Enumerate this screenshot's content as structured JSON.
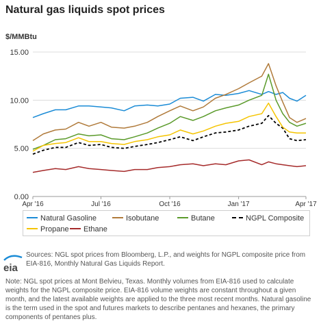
{
  "title": "Natural gas liquids spot prices",
  "unit_label": "$/MMBtu",
  "legend": {
    "items": [
      {
        "label": "Natural Gasoline",
        "color": "#1a8bd6",
        "dashed": false
      },
      {
        "label": "Isobutane",
        "color": "#b07a3a",
        "dashed": false
      },
      {
        "label": "Butane",
        "color": "#5a9a2a",
        "dashed": false
      },
      {
        "label": "NGPL Composite",
        "color": "#000000",
        "dashed": true
      },
      {
        "label": "Propane",
        "color": "#f5c400",
        "dashed": false
      },
      {
        "label": "Ethane",
        "color": "#a52a2a",
        "dashed": false
      }
    ]
  },
  "footer": {
    "logo_text": "eia",
    "sources": "Sources: NGL spot prices from Bloomberg, L.P., and weights for NGPL composite price from EIA-816, Monthly Natural Gas Liquids Report.",
    "note": "Note: NGL spot prices at Mont Belvieu, Texas. Monthly volumes from EIA-816 used to calculate weights for the NGPL composite price. EIA-816 volume weights are constant throughout a given month, and the latest available weights are applied to the three most recent months. Natural gasoline is the term used in the spot and futures markets to describe pentanes and hexanes, the primary components of pentanes plus."
  },
  "chart_data": {
    "type": "line",
    "title": "Natural gas liquids spot prices",
    "ylabel": "$/MMBtu",
    "xlabel": "",
    "ylim": [
      0,
      15
    ],
    "y_ticks": [
      0,
      5,
      10,
      15
    ],
    "y_tick_labels": [
      "0.00",
      "5.00",
      "10.00",
      "15.00"
    ],
    "x_range": [
      "2016-04-01",
      "2017-04-01"
    ],
    "x_ticks": [
      "2016-04-01",
      "2016-07-01",
      "2016-10-01",
      "2017-01-01",
      "2017-04-01"
    ],
    "x_tick_labels": [
      "Apr '16",
      "Jul '16",
      "Oct '16",
      "Jan '17",
      "Apr '17"
    ],
    "grid": "horizontal",
    "legend_position": "bottom",
    "x": [
      "2016-04-01",
      "2016-04-15",
      "2016-05-01",
      "2016-05-15",
      "2016-06-01",
      "2016-06-15",
      "2016-07-01",
      "2016-07-15",
      "2016-08-01",
      "2016-08-15",
      "2016-09-01",
      "2016-09-15",
      "2016-10-01",
      "2016-10-15",
      "2016-11-01",
      "2016-11-15",
      "2016-12-01",
      "2016-12-15",
      "2017-01-01",
      "2017-01-15",
      "2017-02-01",
      "2017-02-10",
      "2017-02-20",
      "2017-03-01",
      "2017-03-10",
      "2017-03-20",
      "2017-04-01"
    ],
    "series": [
      {
        "name": "Natural Gasoline",
        "color": "#1a8bd6",
        "values": [
          8.2,
          8.6,
          9.0,
          9.0,
          9.4,
          9.4,
          9.3,
          9.2,
          8.9,
          9.4,
          9.5,
          9.4,
          9.6,
          10.2,
          10.3,
          9.9,
          10.6,
          10.5,
          10.7,
          11.0,
          10.6,
          10.9,
          10.6,
          10.8,
          10.2,
          9.9,
          10.5
        ]
      },
      {
        "name": "Isobutane",
        "color": "#b07a3a",
        "values": [
          5.8,
          6.5,
          6.9,
          7.0,
          7.7,
          7.3,
          7.7,
          7.2,
          7.1,
          7.3,
          7.7,
          8.3,
          8.9,
          9.4,
          8.9,
          9.3,
          10.2,
          10.6,
          11.2,
          11.8,
          12.5,
          13.8,
          11.5,
          9.8,
          8.2,
          7.7,
          8.1
        ]
      },
      {
        "name": "Butane",
        "color": "#5a9a2a",
        "values": [
          4.9,
          5.3,
          5.9,
          6.0,
          6.5,
          6.3,
          6.4,
          6.0,
          5.9,
          6.2,
          6.6,
          7.1,
          7.6,
          8.3,
          7.9,
          8.3,
          8.9,
          9.2,
          9.5,
          10.0,
          10.5,
          12.7,
          10.0,
          8.6,
          7.7,
          7.3,
          7.6
        ]
      },
      {
        "name": "NGPL Composite",
        "color": "#000000",
        "dashed": true,
        "values": [
          4.4,
          4.8,
          5.1,
          5.1,
          5.6,
          5.3,
          5.4,
          5.1,
          5.0,
          5.2,
          5.4,
          5.6,
          5.9,
          6.2,
          5.8,
          6.2,
          6.6,
          6.7,
          6.9,
          7.3,
          7.6,
          8.4,
          7.6,
          7.1,
          6.0,
          5.8,
          5.9
        ]
      },
      {
        "name": "Propane",
        "color": "#f5c400",
        "values": [
          4.7,
          5.3,
          5.5,
          5.6,
          6.1,
          5.7,
          5.7,
          5.5,
          5.4,
          5.7,
          5.9,
          6.2,
          6.4,
          6.9,
          6.5,
          6.8,
          7.3,
          7.6,
          7.8,
          8.3,
          8.6,
          9.7,
          8.3,
          7.2,
          6.7,
          6.6,
          6.6
        ]
      },
      {
        "name": "Ethane",
        "color": "#a52a2a",
        "values": [
          2.5,
          2.7,
          2.9,
          2.8,
          3.1,
          2.9,
          2.8,
          2.7,
          2.6,
          2.8,
          2.8,
          3.0,
          3.1,
          3.3,
          3.4,
          3.2,
          3.4,
          3.3,
          3.7,
          3.8,
          3.3,
          3.6,
          3.4,
          3.3,
          3.2,
          3.1,
          3.2
        ]
      }
    ]
  }
}
